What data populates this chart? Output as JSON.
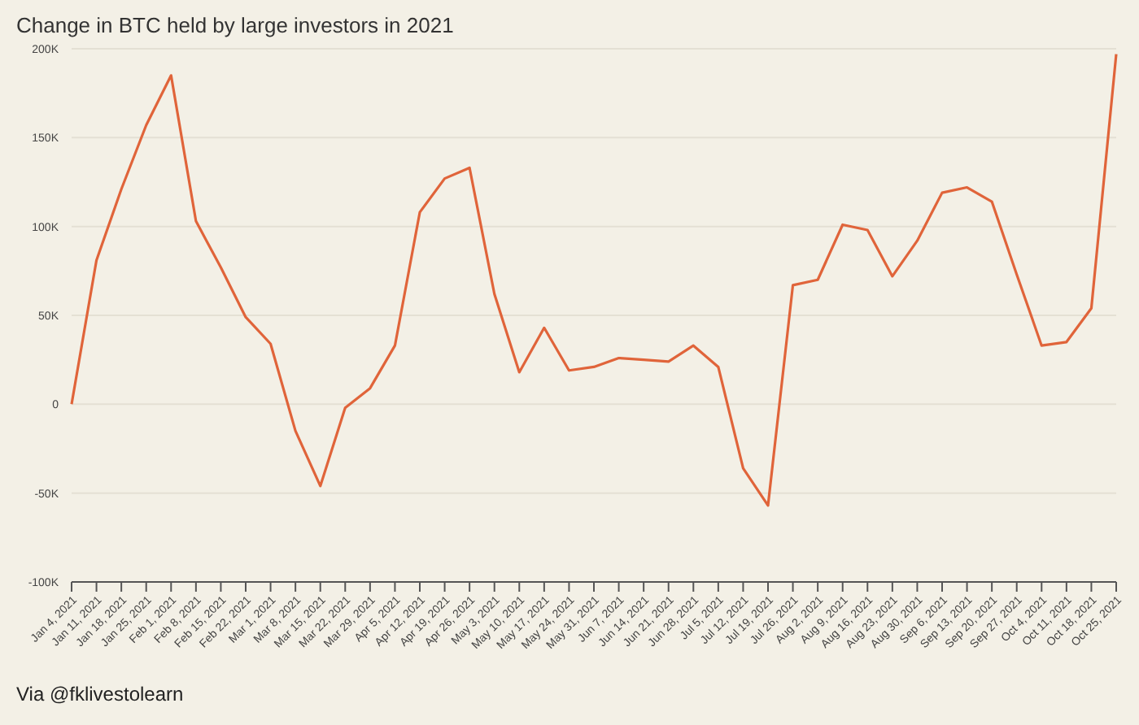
{
  "chart_data": {
    "type": "line",
    "title": "Change in BTC held by large investors in 2021",
    "categories": [
      "Jan 4, 2021",
      "Jan 11, 2021",
      "Jan 18, 2021",
      "Jan 25, 2021",
      "Feb 1, 2021",
      "Feb 8, 2021",
      "Feb 15, 2021",
      "Feb 22, 2021",
      "Mar 1, 2021",
      "Mar 8, 2021",
      "Mar 15, 2021",
      "Mar 22, 2021",
      "Mar 29, 2021",
      "Apr 5, 2021",
      "Apr 12, 2021",
      "Apr 19, 2021",
      "Apr 26, 2021",
      "May 3, 2021",
      "May 10, 2021",
      "May 17, 2021",
      "May 24, 2021",
      "May 31, 2021",
      "Jun 7, 2021",
      "Jun 14, 2021",
      "Jun 21, 2021",
      "Jun 28, 2021",
      "Jul 5, 2021",
      "Jul 12, 2021",
      "Jul 19, 2021",
      "Jul 26, 2021",
      "Aug 2, 2021",
      "Aug 9, 2021",
      "Aug 16, 2021",
      "Aug 23, 2021",
      "Aug 30, 2021",
      "Sep 6, 2021",
      "Sep 13, 2021",
      "Sep 20, 2021",
      "Sep 27, 2021",
      "Oct 4, 2021",
      "Oct 11, 2021",
      "Oct 18, 2021",
      "Oct 25, 2021"
    ],
    "series": [
      {
        "color": "#e0643a",
        "values": [
          0,
          81000,
          121000,
          157000,
          185000,
          103000,
          77000,
          49000,
          34000,
          -15000,
          -46000,
          -2000,
          9000,
          33000,
          108000,
          127000,
          133000,
          62000,
          18000,
          43000,
          19000,
          21000,
          26000,
          25000,
          24000,
          33000,
          21000,
          -36000,
          -57000,
          67000,
          70000,
          101000,
          98000,
          72000,
          92000,
          119000,
          122000,
          114000,
          73000,
          33000,
          35000,
          54000,
          197000
        ]
      }
    ],
    "ylim": [
      -100000,
      200000
    ],
    "yticks": [
      {
        "value": -100000,
        "label": "-100K"
      },
      {
        "value": -50000,
        "label": "-50K"
      },
      {
        "value": 0,
        "label": "0"
      },
      {
        "value": 50000,
        "label": "50K"
      },
      {
        "value": 100000,
        "label": "100K"
      },
      {
        "value": 150000,
        "label": "150K"
      },
      {
        "value": 200000,
        "label": "200K"
      }
    ],
    "grid": "y",
    "marker": "none",
    "line_style": "solid",
    "annotations": [
      "Via @fklivestolearn"
    ]
  }
}
